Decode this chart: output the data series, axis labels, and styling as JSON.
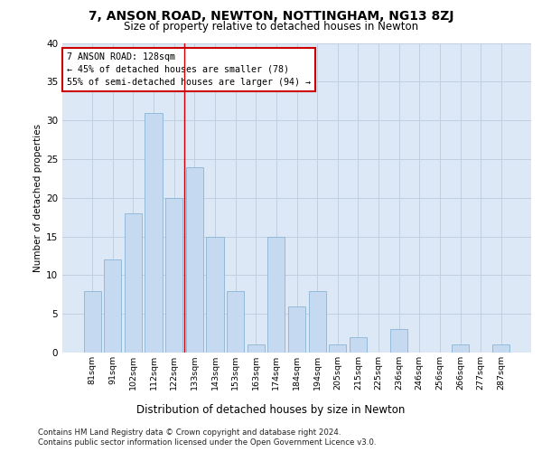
{
  "title": "7, ANSON ROAD, NEWTON, NOTTINGHAM, NG13 8ZJ",
  "subtitle": "Size of property relative to detached houses in Newton",
  "xlabel": "Distribution of detached houses by size in Newton",
  "ylabel": "Number of detached properties",
  "categories": [
    "81sqm",
    "91sqm",
    "102sqm",
    "112sqm",
    "122sqm",
    "133sqm",
    "143sqm",
    "153sqm",
    "163sqm",
    "174sqm",
    "184sqm",
    "194sqm",
    "205sqm",
    "215sqm",
    "225sqm",
    "236sqm",
    "246sqm",
    "256sqm",
    "266sqm",
    "277sqm",
    "287sqm"
  ],
  "values": [
    8,
    12,
    18,
    31,
    20,
    24,
    15,
    8,
    1,
    15,
    6,
    8,
    1,
    2,
    0,
    3,
    0,
    0,
    1,
    0,
    1
  ],
  "bar_color": "#c5d9f1",
  "bar_edge_color": "#8ab4d4",
  "grid_color": "#c0d0e0",
  "background_color": "#dce8f5",
  "red_line_x": 4.5,
  "annotation_title": "7 ANSON ROAD: 128sqm",
  "annotation_line1": "← 45% of detached houses are smaller (78)",
  "annotation_line2": "55% of semi-detached houses are larger (94) →",
  "annotation_box_color": "#ffffff",
  "annotation_box_edge": "#cc0000",
  "red_line_color": "#cc0000",
  "ylim": [
    0,
    40
  ],
  "yticks": [
    0,
    5,
    10,
    15,
    20,
    25,
    30,
    35,
    40
  ],
  "footer1": "Contains HM Land Registry data © Crown copyright and database right 2024.",
  "footer2": "Contains public sector information licensed under the Open Government Licence v3.0."
}
